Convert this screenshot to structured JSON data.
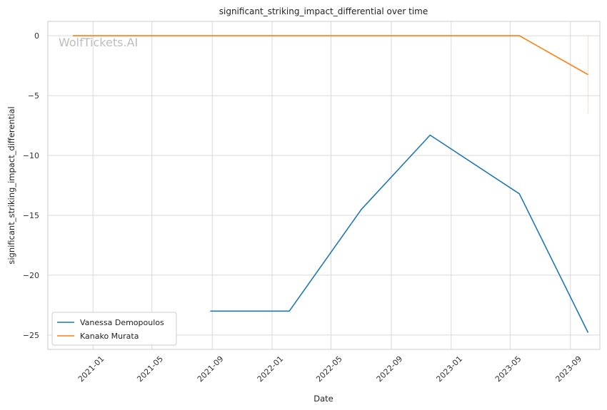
{
  "chart_data": {
    "type": "line",
    "title": "significant_striking_impact_differential over time",
    "xlabel": "Date",
    "ylabel": "significant_striking_impact_differential",
    "watermark": "WolfTickets.AI",
    "x_ticks": [
      "2021-01",
      "2021-05",
      "2021-09",
      "2022-01",
      "2022-05",
      "2022-09",
      "2023-01",
      "2023-05",
      "2023-09"
    ],
    "xlim": [
      "2020-10-01",
      "2023-10-31"
    ],
    "y_ticks": [
      0,
      -5,
      -10,
      -15,
      -20,
      -25
    ],
    "ylim": [
      -26.2,
      1.2
    ],
    "grid": true,
    "legend_position": "lower-left",
    "series": [
      {
        "name": "Vanessa Demopoulos",
        "color": "#1f77b4",
        "points": [
          {
            "x": "2021-08-28",
            "y": -23.0
          },
          {
            "x": "2022-02-05",
            "y": -23.0
          },
          {
            "x": "2022-07-02",
            "y": -14.5
          },
          {
            "x": "2022-11-19",
            "y": -8.3
          },
          {
            "x": "2023-05-20",
            "y": -13.2
          },
          {
            "x": "2023-10-07",
            "y": -24.8
          }
        ]
      },
      {
        "name": "Kanako Murata",
        "color": "#ff7f0e",
        "points": [
          {
            "x": "2020-11-21",
            "y": 0
          },
          {
            "x": "2023-05-20",
            "y": 0
          },
          {
            "x": "2023-10-07",
            "y": -3.25
          }
        ],
        "error_band": {
          "x": "2023-10-07",
          "low": -6.5,
          "high": 0
        }
      }
    ]
  }
}
